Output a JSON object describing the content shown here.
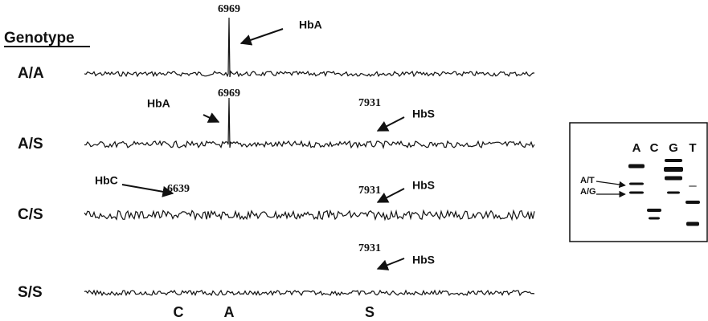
{
  "genotype_heading": "Genotype",
  "rows": [
    {
      "genotype": "A/A",
      "peaks": [
        {
          "mass": 6969,
          "label": "HbA"
        }
      ]
    },
    {
      "genotype": "A/S",
      "peaks": [
        {
          "mass": 6969,
          "label": "HbA"
        },
        {
          "mass": 7931,
          "label": "HbS"
        }
      ]
    },
    {
      "genotype": "C/S",
      "peaks": [
        {
          "mass": 6639,
          "label": "HbC"
        },
        {
          "mass": 7931,
          "label": "HbS"
        }
      ]
    },
    {
      "genotype": "S/S",
      "peaks": [
        {
          "mass": 7931,
          "label": "HbS"
        }
      ]
    }
  ],
  "x_labels": [
    "C",
    "A",
    "S"
  ],
  "inset": {
    "lanes": [
      "A",
      "C",
      "G",
      "T"
    ],
    "markers": [
      "A/T",
      "A/G"
    ]
  }
}
